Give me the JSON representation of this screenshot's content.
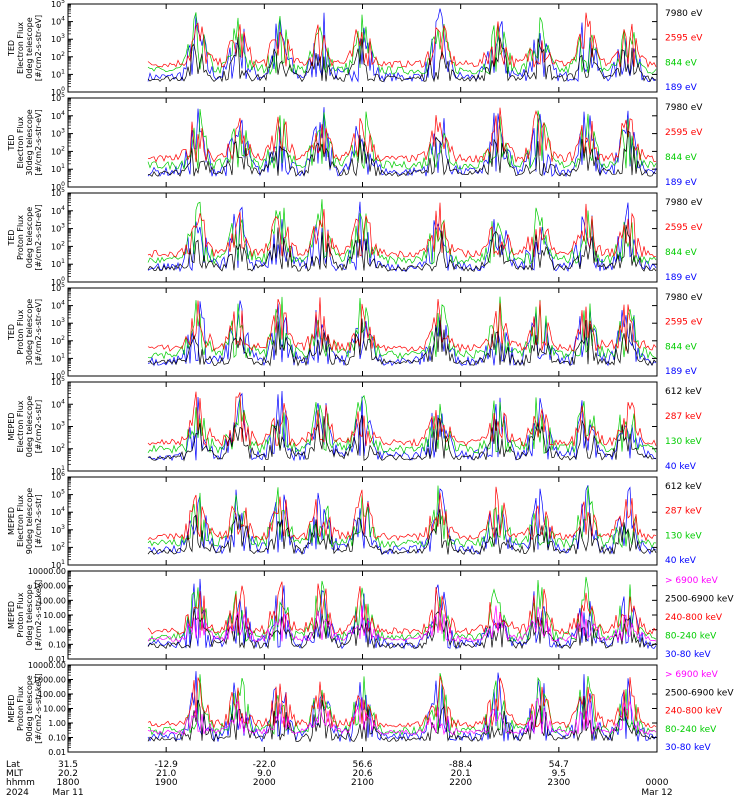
{
  "chart_data": [
    {
      "type": "line",
      "ylabel": [
        "TED",
        "Electron Flux",
        "0deg telescope",
        "[#/cm2-s-str-eV]"
      ],
      "y_ticks": [
        "10^0",
        "10^1",
        "10^2",
        "10^3",
        "10^4",
        "10^5"
      ],
      "ylim": [
        1,
        100000
      ],
      "yscale": "log",
      "series": [
        {
          "name": "7980 eV",
          "color": "#000000"
        },
        {
          "name": "2595 eV",
          "color": "#ff0000"
        },
        {
          "name": "844 eV",
          "color": "#00cc00"
        },
        {
          "name": "189 eV",
          "color": "#0000ff"
        }
      ]
    },
    {
      "type": "line",
      "ylabel": [
        "TED",
        "Electron Flux",
        "30deg telescope",
        "[#/cm2-s-str-eV]"
      ],
      "y_ticks": [
        "10^0",
        "10^1",
        "10^2",
        "10^3",
        "10^4",
        "10^5"
      ],
      "ylim": [
        1,
        100000
      ],
      "yscale": "log",
      "series": [
        {
          "name": "7980 eV",
          "color": "#000000"
        },
        {
          "name": "2595 eV",
          "color": "#ff0000"
        },
        {
          "name": "844 eV",
          "color": "#00cc00"
        },
        {
          "name": "189 eV",
          "color": "#0000ff"
        }
      ]
    },
    {
      "type": "line",
      "ylabel": [
        "TED",
        "Proton Flux",
        "0deg telescope",
        "[#/cm2-s-str-eV]"
      ],
      "y_ticks": [
        "10^0",
        "10^1",
        "10^2",
        "10^3",
        "10^4",
        "10^5"
      ],
      "ylim": [
        1,
        100000
      ],
      "yscale": "log",
      "series": [
        {
          "name": "7980 eV",
          "color": "#000000"
        },
        {
          "name": "2595 eV",
          "color": "#ff0000"
        },
        {
          "name": "844 eV",
          "color": "#00cc00"
        },
        {
          "name": "189 eV",
          "color": "#0000ff"
        }
      ]
    },
    {
      "type": "line",
      "ylabel": [
        "TED",
        "Proton Flux",
        "30deg telescope",
        "[#/cm2-s-str-eV]"
      ],
      "y_ticks": [
        "10^0",
        "10^1",
        "10^2",
        "10^3",
        "10^4",
        "10^5"
      ],
      "ylim": [
        1,
        100000
      ],
      "yscale": "log",
      "series": [
        {
          "name": "7980 eV",
          "color": "#000000"
        },
        {
          "name": "2595 eV",
          "color": "#ff0000"
        },
        {
          "name": "844 eV",
          "color": "#00cc00"
        },
        {
          "name": "189 eV",
          "color": "#0000ff"
        }
      ]
    },
    {
      "type": "line",
      "ylabel": [
        "MEPED",
        "Electron Flux",
        "0deg telescope",
        "[#/cm2-s-str]"
      ],
      "y_ticks": [
        "10^1",
        "10^2",
        "10^3",
        "10^4",
        "10^5"
      ],
      "ylim": [
        10,
        100000
      ],
      "yscale": "log",
      "series": [
        {
          "name": "612 keV",
          "color": "#000000"
        },
        {
          "name": "287 keV",
          "color": "#ff0000"
        },
        {
          "name": "130 keV",
          "color": "#00cc00"
        },
        {
          "name": "40 keV",
          "color": "#0000ff"
        }
      ]
    },
    {
      "type": "line",
      "ylabel": [
        "MEPED",
        "Electron Flux",
        "90deg telescope",
        "[#/cm2-s-str]"
      ],
      "y_ticks": [
        "10^1",
        "10^2",
        "10^3",
        "10^4",
        "10^5",
        "10^6"
      ],
      "ylim": [
        10,
        1000000
      ],
      "yscale": "log",
      "series": [
        {
          "name": "612 keV",
          "color": "#000000"
        },
        {
          "name": "287 keV",
          "color": "#ff0000"
        },
        {
          "name": "130 keV",
          "color": "#00cc00"
        },
        {
          "name": "40 keV",
          "color": "#0000ff"
        }
      ]
    },
    {
      "type": "line",
      "ylabel": [
        "MEPED",
        "Proton Flux",
        "0deg telescope",
        "[#/cm2-s-str-keV]"
      ],
      "y_ticks": [
        "0.01",
        "0.10",
        "1.00",
        "10.00",
        "100.00",
        "1000.00",
        "10000.00"
      ],
      "ylim": [
        0.01,
        10000
      ],
      "yscale": "log",
      "series": [
        {
          "name": "> 6900 keV",
          "color": "#ff00ff"
        },
        {
          "name": "2500-6900 keV",
          "color": "#000000"
        },
        {
          "name": "240-800 keV",
          "color": "#ff0000"
        },
        {
          "name": "80-240 keV",
          "color": "#00cc00"
        },
        {
          "name": "30-80 keV",
          "color": "#0000ff"
        }
      ]
    },
    {
      "type": "line",
      "ylabel": [
        "MEPED",
        "Proton Flux",
        "90deg telescope",
        "[#/cm2-s-str-keV]"
      ],
      "y_ticks": [
        "0.01",
        "0.10",
        "1.00",
        "10.00",
        "100.00",
        "1000.00",
        "10000.00"
      ],
      "ylim": [
        0.01,
        10000
      ],
      "yscale": "log",
      "series": [
        {
          "name": "> 6900 keV",
          "color": "#ff00ff"
        },
        {
          "name": "2500-6900 keV",
          "color": "#000000"
        },
        {
          "name": "240-800 keV",
          "color": "#ff0000"
        },
        {
          "name": "80-240 keV",
          "color": "#00cc00"
        },
        {
          "name": "30-80 keV",
          "color": "#0000ff"
        }
      ]
    }
  ],
  "xaxis": {
    "row_labels": [
      "Lat",
      "MLT",
      "hhmm",
      "2024"
    ],
    "ticks": [
      {
        "lat": "31.5",
        "mlt": "20.2",
        "hhmm": "1800",
        "date": "Mar 11"
      },
      {
        "lat": "-12.9",
        "mlt": "21.0",
        "hhmm": "1900",
        "date": ""
      },
      {
        "lat": "-22.0",
        "mlt": "9.0",
        "hhmm": "2000",
        "date": ""
      },
      {
        "lat": "56.6",
        "mlt": "20.6",
        "hhmm": "2100",
        "date": ""
      },
      {
        "lat": "-88.4",
        "mlt": "20.1",
        "hhmm": "2200",
        "date": ""
      },
      {
        "lat": "54.7",
        "mlt": "9.5",
        "hhmm": "2300",
        "date": ""
      },
      {
        "lat": "",
        "mlt": "",
        "hhmm": "0000",
        "date": "Mar 12"
      }
    ]
  }
}
